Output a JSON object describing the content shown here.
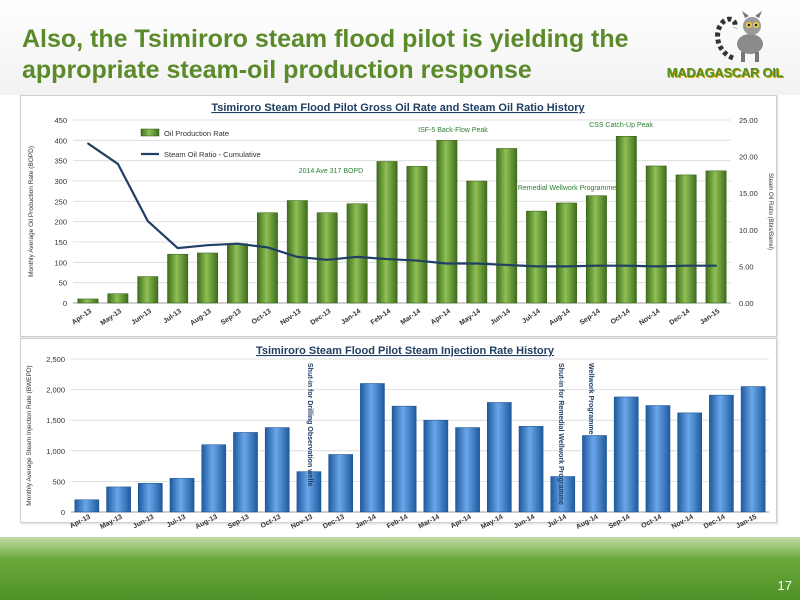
{
  "slide": {
    "title": "Also, the Tsimiroro steam flood pilot is yielding the appropriate steam-oil production response",
    "logo_text": "MADAGASCAR OIL",
    "page_number": "17"
  },
  "colors": {
    "title": "#5a8a2a",
    "bar_green": "#5f8f2e",
    "line_navy": "#1f3f63",
    "bar_blue": "#3a78c0",
    "footer": "#4f9128"
  },
  "chart_data": [
    {
      "type": "bar",
      "title": "Tsimiroro Steam Flood Pilot  Gross Oil Rate and Steam Oil Ratio History",
      "ylabel": "Monthly Average Oil Production Rate (BOPD)",
      "y2label": "Steam Oil Ratio (Bbls/Barrel)",
      "ylim": [
        0,
        450
      ],
      "y2lim": [
        0,
        25
      ],
      "yticks": [
        "0",
        "50",
        "100",
        "150",
        "200",
        "250",
        "300",
        "350",
        "400",
        "450"
      ],
      "y2ticks": [
        "0.00",
        "5.00",
        "10.00",
        "15.00",
        "20.00",
        "25.00"
      ],
      "categories": [
        "Apr-13",
        "May-13",
        "Jun-13",
        "Jul-13",
        "Aug-13",
        "Sep-13",
        "Oct-13",
        "Nov-13",
        "Dec-13",
        "Jan-14",
        "Feb-14",
        "Mar-14",
        "Apr-14",
        "May-14",
        "Jun-14",
        "Jul-14",
        "Aug-14",
        "Sep-14",
        "Oct-14",
        "Nov-14",
        "Dec-14",
        "Jan-15"
      ],
      "series": [
        {
          "name": "Oil Production Rate",
          "kind": "bar",
          "axis": "left",
          "values": [
            10,
            23,
            65,
            120,
            123,
            146,
            222,
            252,
            222,
            244,
            348,
            336,
            400,
            300,
            380,
            226,
            246,
            264,
            410,
            337,
            315,
            325
          ]
        },
        {
          "name": "Steam Oil Ratio - Cumulative",
          "kind": "line",
          "axis": "right",
          "values": [
            21.8,
            19.0,
            11.2,
            7.5,
            7.9,
            8.1,
            7.6,
            6.3,
            5.9,
            6.3,
            6.0,
            5.8,
            5.4,
            5.4,
            5.2,
            5.0,
            5.0,
            5.1,
            5.1,
            5.0,
            5.1,
            5.1
          ]
        }
      ],
      "legend": "top-left",
      "grid": true,
      "annotations": [
        "ISF-5 Back-Flow Peak",
        "CSS Catch-Up Peak",
        "2014 Ave 317 BOPD",
        "Remedial Wellwork Programme"
      ]
    },
    {
      "type": "bar",
      "title": "Tsimiroro Steam Flood Pilot Steam Injection Rate History",
      "ylabel": "Monthly Average Steam Injection  Rate (BWEPD)",
      "ylim": [
        0,
        2500
      ],
      "yticks": [
        "0",
        "500",
        "1,000",
        "1,500",
        "2,000",
        "2,500"
      ],
      "categories": [
        "Apr-13",
        "May-13",
        "Jun-13",
        "Jul-13",
        "Aug-13",
        "Sep-13",
        "Oct-13",
        "Nov-13",
        "Dec-13",
        "Jan-14",
        "Feb-14",
        "Mar-14",
        "Apr-14",
        "May-14",
        "Jun-14",
        "Jul-14",
        "Aug-14",
        "Sep-14",
        "Oct-14",
        "Nov-14",
        "Dec-14",
        "Jan-15"
      ],
      "series": [
        {
          "kind": "bar",
          "values": [
            200,
            410,
            470,
            550,
            1100,
            1300,
            1380,
            660,
            940,
            2100,
            1730,
            1500,
            1380,
            1790,
            1400,
            580,
            1250,
            1880,
            1740,
            1620,
            1910,
            2050
          ]
        }
      ],
      "grid": true,
      "annotations": [
        "Shut-in for Drilling Observation wells",
        "Shut-in for Remedial Wellwork Programme",
        "Wellwork Programme"
      ]
    }
  ]
}
